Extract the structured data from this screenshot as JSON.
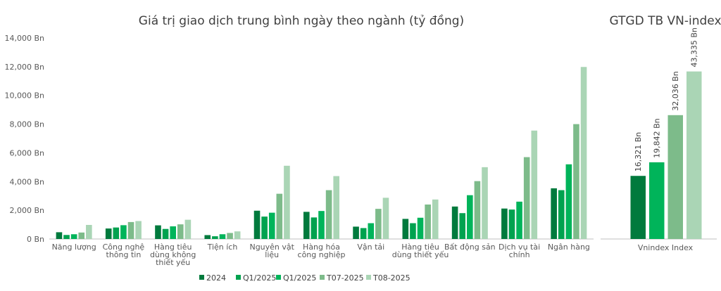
{
  "colors": {
    "2024": "#007a3d",
    "Q1/2025_a": "#00a24f",
    "Q1/2025_b": "#00b45a",
    "T07-2025": "#7dbb8a",
    "T08-2025": "#aad5b5",
    "axis": "#bfbfbf",
    "text": "#595959"
  },
  "chart_data": [
    {
      "type": "bar",
      "title": "Giá trị giao dịch trung bình ngày theo ngành (tỷ đồng)",
      "ylim": [
        0,
        14000
      ],
      "yticks": [
        "0 Bn",
        "2,000 Bn",
        "4,000 Bn",
        "6,000 Bn",
        "8,000 Bn",
        "10,000 Bn",
        "12,000 Bn",
        "14,000 Bn"
      ],
      "ytick_values": [
        0,
        2000,
        4000,
        6000,
        8000,
        10000,
        12000,
        14000
      ],
      "grid": false,
      "legend_position": "bottom",
      "categories": [
        [
          "Năng lượng"
        ],
        [
          "Công nghệ",
          "thông tin"
        ],
        [
          "Hàng tiêu",
          "dùng không",
          "thiết yếu"
        ],
        [
          "Tiện ích"
        ],
        [
          "Nguyên vật",
          "liệu"
        ],
        [
          "Hàng hóa",
          "công nghiệp"
        ],
        [
          "Vận tải"
        ],
        [
          "Hàng tiêu",
          "dùng thiết yếu"
        ],
        [
          "Bất động sản"
        ],
        [
          "Dịch vụ tài",
          "chính"
        ],
        [
          "Ngân hàng"
        ]
      ],
      "series": [
        {
          "name": "2024",
          "values": [
            470,
            730,
            950,
            270,
            1970,
            1890,
            860,
            1400,
            2260,
            2120,
            3530
          ]
        },
        {
          "name": "Q1/2025",
          "values": [
            280,
            800,
            700,
            190,
            1560,
            1500,
            760,
            1100,
            1800,
            2050,
            3400
          ]
        },
        {
          "name": "Q1/2025",
          "values": [
            330,
            960,
            880,
            330,
            1830,
            1950,
            1100,
            1480,
            3050,
            2600,
            5200
          ]
        },
        {
          "name": "T07-2025",
          "values": [
            450,
            1180,
            1020,
            420,
            3150,
            3400,
            2100,
            2400,
            4030,
            5700,
            8000
          ]
        },
        {
          "name": "T08-2025",
          "values": [
            980,
            1250,
            1340,
            530,
            5100,
            4380,
            2870,
            2750,
            5000,
            7550,
            11980
          ]
        }
      ]
    },
    {
      "type": "bar",
      "title": "GTGD TB VN-index",
      "categories": [
        "Vnindex Index"
      ],
      "series": [
        {
          "name": "2024",
          "values": [
            16321
          ],
          "label": "16,321 Bn"
        },
        {
          "name": "Q1/2025",
          "values": [
            19842
          ],
          "label": "19,842 Bn"
        },
        {
          "name": "T07-2025",
          "values": [
            32036
          ],
          "label": "32,036 Bn"
        },
        {
          "name": "T08-2025",
          "values": [
            43335
          ],
          "label": "43,335 Bn"
        }
      ]
    }
  ]
}
